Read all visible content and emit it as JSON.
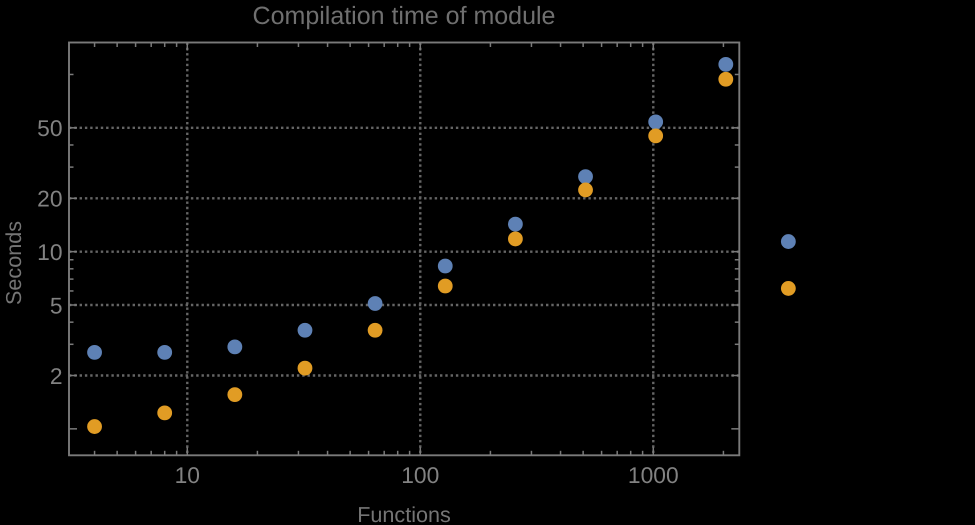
{
  "title": "Compilation time of module",
  "xlabel": "Functions",
  "ylabel": "Seconds",
  "colors": {
    "background": "#000000",
    "frame": "#7a7a7a",
    "grid": "#656565",
    "tick_label": "#828282",
    "title": "#6f6f6f",
    "axis_label": "#757575",
    "series_blue": "#5E81B5",
    "series_orange": "#E19C24"
  },
  "chart_data": {
    "type": "scatter",
    "title": "Compilation time of module",
    "xlabel": "Functions",
    "ylabel": "Seconds",
    "log_x": true,
    "log_y": true,
    "x": [
      4,
      8,
      16,
      32,
      64,
      128,
      256,
      512,
      1024,
      2048,
      3800
    ],
    "series": [
      {
        "name": "blue",
        "color": "#5E81B5",
        "values": [
          2.7,
          2.7,
          2.9,
          3.6,
          5.1,
          8.3,
          14.3,
          26.5,
          54,
          114,
          11.4
        ]
      },
      {
        "name": "orange",
        "color": "#E19C24",
        "values": [
          1.03,
          1.23,
          1.56,
          2.2,
          3.6,
          6.4,
          11.8,
          22.3,
          45,
          94,
          6.2
        ]
      }
    ],
    "x_tick_labels": [
      "10",
      "100",
      "1000"
    ],
    "x_tick_values": [
      10,
      100,
      1000
    ],
    "y_tick_labels": [
      "2",
      "5",
      "10",
      "20",
      "50"
    ],
    "y_tick_values": [
      2,
      5,
      10,
      20,
      50
    ],
    "x_gridlines": [
      10,
      100,
      1000
    ],
    "y_gridlines": [
      2,
      5,
      10,
      20,
      50
    ],
    "xlim": [
      3.107,
      2340
    ],
    "ylim": [
      0.709,
      151.5
    ],
    "grid_style": "dotted",
    "legend": "none"
  }
}
